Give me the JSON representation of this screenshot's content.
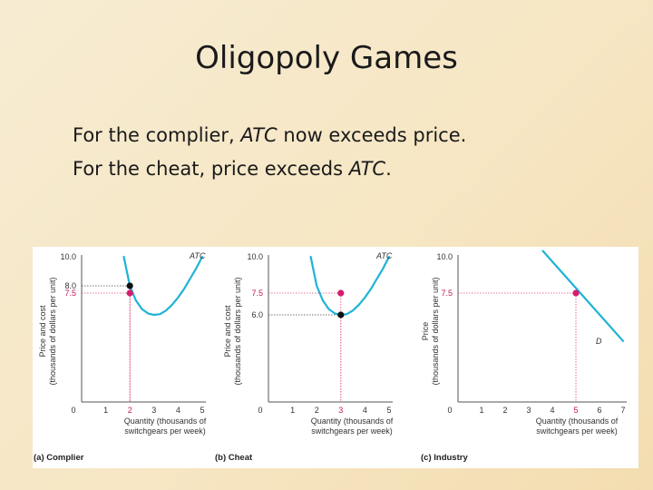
{
  "slide": {
    "title": "Oligopoly Games",
    "bullet1": {
      "pre": "For the complier, ",
      "em": "ATC",
      "post": " now exceeds price."
    },
    "bullet2": {
      "pre": "For the cheat, price exceeds ",
      "em": "ATC",
      "post": "."
    }
  },
  "colors": {
    "curve": "#1fb3d6",
    "point_red": "#d61c6e",
    "point_black": "#111111",
    "guide": "#e0457d",
    "axis": "#555555"
  },
  "chart_data": [
    {
      "type": "line",
      "caption": "(a) Complier",
      "curve_label": "ATC",
      "xlabel": "Quantity (thousands of switchgears per week)",
      "ylabel": "Price and cost (thousands of dollars per unit)",
      "xlim": [
        0,
        5
      ],
      "ylim": [
        0,
        10
      ],
      "x_ticks": [
        "0",
        "1",
        "2",
        "3",
        "4",
        "5"
      ],
      "y_ticks": [
        {
          "v": 10,
          "label": "10.0",
          "red": false
        },
        {
          "v": 8,
          "label": "8.0",
          "red": false
        },
        {
          "v": 7.5,
          "label": "7.5",
          "red": true
        }
      ],
      "series": [
        {
          "x": [
            1.75,
            2,
            2.25,
            2.5,
            2.75,
            3,
            3.25,
            3.5,
            3.75,
            4,
            4.25,
            4.5,
            4.75,
            5
          ],
          "y": [
            10,
            8,
            7,
            6.4,
            6.1,
            6,
            6.05,
            6.3,
            6.7,
            7.2,
            7.8,
            8.5,
            9.2,
            10
          ]
        }
      ],
      "points": [
        {
          "x": 2,
          "y": 8,
          "color": "black"
        },
        {
          "x": 2,
          "y": 7.5,
          "color": "red"
        }
      ]
    },
    {
      "type": "line",
      "caption": "(b) Cheat",
      "curve_label": "ATC",
      "xlabel": "Quantity (thousands of switchgears per week)",
      "ylabel": "Price and cost (thousands of dollars per unit)",
      "xlim": [
        0,
        5
      ],
      "ylim": [
        0,
        10
      ],
      "x_ticks": [
        "0",
        "1",
        "2",
        "3",
        "4",
        "5"
      ],
      "y_ticks": [
        {
          "v": 10,
          "label": "10.0",
          "red": false
        },
        {
          "v": 7.5,
          "label": "7.5",
          "red": true
        },
        {
          "v": 6,
          "label": "6.0",
          "red": false
        }
      ],
      "series": [
        {
          "x": [
            1.75,
            2,
            2.25,
            2.5,
            2.75,
            3,
            3.25,
            3.5,
            3.75,
            4,
            4.25,
            4.5,
            4.75,
            5
          ],
          "y": [
            10,
            8,
            7,
            6.4,
            6.1,
            6,
            6.05,
            6.3,
            6.7,
            7.2,
            7.8,
            8.5,
            9.2,
            10
          ]
        }
      ],
      "points": [
        {
          "x": 3,
          "y": 6,
          "color": "black"
        },
        {
          "x": 3,
          "y": 7.5,
          "color": "red"
        }
      ]
    },
    {
      "type": "line",
      "caption": "(c) Industry",
      "curve_label": "D",
      "xlabel": "Quantity (thousands of switchgears per week)",
      "ylabel": "Price (thousands of dollars per unit)",
      "xlim": [
        0,
        7
      ],
      "ylim": [
        0,
        10
      ],
      "x_ticks": [
        "0",
        "1",
        "2",
        "3",
        "4",
        "5",
        "6",
        "7"
      ],
      "y_ticks": [
        {
          "v": 10,
          "label": "10.0",
          "red": false
        },
        {
          "v": 7.5,
          "label": "7.5",
          "red": true
        }
      ],
      "series": [
        {
          "x": [
            3.6,
            7
          ],
          "y": [
            10.4,
            4.2
          ]
        }
      ],
      "points": [
        {
          "x": 5,
          "y": 7.5,
          "color": "red"
        }
      ]
    }
  ]
}
